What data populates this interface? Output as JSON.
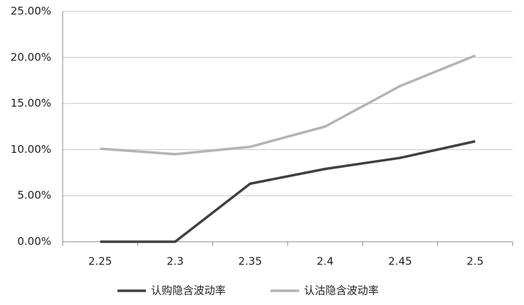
{
  "chart_data": {
    "type": "line",
    "categories": [
      "2.25",
      "2.3",
      "2.35",
      "2.4",
      "2.45",
      "2.5"
    ],
    "series": [
      {
        "name": "认购隐含波动率",
        "color": "#404040",
        "values": [
          0,
          0,
          6.3,
          7.9,
          9.1,
          10.9
        ]
      },
      {
        "name": "认沽隐含波动率",
        "color": "#b4b4b4",
        "values": [
          10.1,
          9.5,
          10.3,
          12.5,
          16.9,
          20.2
        ]
      }
    ],
    "ylim": [
      0,
      25
    ],
    "yticks": [
      {
        "value": 0,
        "label": "0.00%"
      },
      {
        "value": 5,
        "label": "5.00%"
      },
      {
        "value": 10,
        "label": "10.00%"
      },
      {
        "value": 15,
        "label": "15.00%"
      },
      {
        "value": 20,
        "label": "20.00%"
      },
      {
        "value": 25,
        "label": "25.00%"
      }
    ],
    "grid": true,
    "legend": "bottom"
  }
}
